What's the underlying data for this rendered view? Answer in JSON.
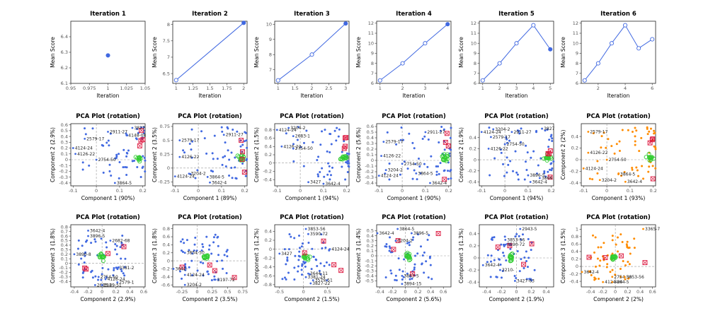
{
  "chart_data": [
    {
      "panel": "iter1",
      "type": "line",
      "title": "Iteration 1",
      "xlabel": "Iteration",
      "ylabel": "Mean Score",
      "xlim": [
        0.95,
        1.05
      ],
      "ylim": [
        6.1,
        6.5
      ],
      "xticks": [
        0.95,
        0.975,
        1.0,
        1.025,
        1.05
      ],
      "yticks": [
        6.1,
        6.2,
        6.3,
        6.4
      ],
      "x": [
        1
      ],
      "values": [
        6.28
      ]
    },
    {
      "panel": "iter2",
      "type": "line",
      "title": "Iteration 2",
      "xlabel": "Iteration",
      "ylabel": "Mean Score",
      "xlim": [
        0.95,
        2.05
      ],
      "ylim": [
        6.2,
        8.1
      ],
      "xticks": [
        1.0,
        1.25,
        1.5,
        1.75,
        2.0
      ],
      "yticks": [
        6.5,
        7.0,
        7.5,
        8.0
      ],
      "x": [
        1,
        2
      ],
      "values": [
        6.3,
        8.05
      ]
    },
    {
      "panel": "iter3",
      "type": "line",
      "title": "Iteration 3",
      "xlabel": "Iteration",
      "ylabel": "Mean Score",
      "xlim": [
        0.9,
        3.1
      ],
      "ylim": [
        6.1,
        10.2
      ],
      "xticks": [
        1.0,
        1.5,
        2.0,
        2.5,
        3.0
      ],
      "yticks": [
        7,
        8,
        9,
        10
      ],
      "x": [
        1,
        2,
        3
      ],
      "values": [
        6.3,
        8.0,
        10.05
      ]
    },
    {
      "panel": "iter4",
      "type": "line",
      "title": "Iteration 4",
      "xlabel": "Iteration",
      "ylabel": "Mean Score",
      "xlim": [
        0.85,
        4.15
      ],
      "ylim": [
        6.0,
        12.2
      ],
      "xticks": [
        1,
        2,
        3,
        4
      ],
      "yticks": [
        6,
        7,
        8,
        9,
        10,
        11,
        12
      ],
      "x": [
        1,
        2,
        3,
        4
      ],
      "values": [
        6.3,
        8.0,
        10.0,
        11.9
      ]
    },
    {
      "panel": "iter5",
      "type": "line",
      "title": "Iteration 5",
      "xlabel": "Iteration",
      "ylabel": "Mean Score",
      "xlim": [
        0.8,
        5.2
      ],
      "ylim": [
        6.0,
        12.2
      ],
      "xticks": [
        1,
        2,
        3,
        4,
        5
      ],
      "yticks": [
        6,
        7,
        8,
        9,
        10,
        11,
        12
      ],
      "x": [
        1,
        2,
        3,
        4,
        5
      ],
      "values": [
        6.3,
        8.0,
        10.0,
        11.8,
        9.4
      ]
    },
    {
      "panel": "iter6",
      "type": "line",
      "title": "Iteration 6",
      "xlabel": "Iteration",
      "ylabel": "Mean Score",
      "xlim": [
        0.75,
        6.25
      ],
      "ylim": [
        6.0,
        12.2
      ],
      "xticks": [
        2,
        4,
        6
      ],
      "yticks": [
        6,
        7,
        8,
        9,
        10,
        11,
        12
      ],
      "x": [
        1,
        2,
        3,
        4,
        5,
        6
      ],
      "values": [
        6.3,
        8.0,
        10.0,
        11.8,
        9.5,
        10.4
      ]
    },
    {
      "panel": "pca1-1",
      "type": "scatter",
      "title": "PCA Plot (rotation)",
      "xlabel": "Component 1 (90%)",
      "ylabel": "Component 2 (2.9%)",
      "xlim": [
        -0.11,
        0.21
      ],
      "ylim": [
        -0.45,
        0.62
      ],
      "xticks": [
        -0.1,
        0,
        0.1,
        0.2
      ],
      "yticks": [
        -0.4,
        -0.3,
        -0.2,
        -0.1,
        0,
        0.1,
        0.2,
        0.3,
        0.4,
        0.5,
        0.6
      ],
      "labels": [
        {
          "text": "3827",
          "x": 0.155,
          "y": 0.6
        },
        {
          "text": "2911-27",
          "x": 0.05,
          "y": 0.48
        },
        {
          "text": "2579-17",
          "x": -0.05,
          "y": 0.36
        },
        {
          "text": "4148-08",
          "x": 0.13,
          "y": 0.42
        },
        {
          "text": "4124-24",
          "x": -0.1,
          "y": 0.2
        },
        {
          "text": "4126-22",
          "x": -0.09,
          "y": 0.1
        },
        {
          "text": "2754-50",
          "x": 0.0,
          "y": 0.0
        },
        {
          "text": "3864-5",
          "x": 0.08,
          "y": -0.4
        }
      ]
    },
    {
      "panel": "pca1-2",
      "type": "scatter",
      "title": "PCA Plot (rotation)",
      "xlabel": "Component 1 (89%)",
      "ylabel": "Component 2 (3.5%)",
      "xlim": [
        -0.11,
        0.21
      ],
      "ylim": [
        -0.32,
        0.8
      ],
      "xticks": [
        -0.1,
        0,
        0.1,
        0.2
      ],
      "yticks": [
        -0.25,
        0,
        0.25,
        0.5,
        0.75
      ],
      "labels": [
        {
          "text": "2579-17",
          "x": -0.08,
          "y": 0.5
        },
        {
          "text": "2911-27",
          "x": 0.11,
          "y": 0.6
        },
        {
          "text": "4126-22",
          "x": -0.08,
          "y": 0.2
        },
        {
          "text": "3204-2",
          "x": -0.04,
          "y": -0.1
        },
        {
          "text": "4124-24",
          "x": -0.1,
          "y": -0.15
        },
        {
          "text": "3864-5",
          "x": 0.04,
          "y": -0.16
        },
        {
          "text": "3642-4",
          "x": 0.05,
          "y": -0.26
        }
      ]
    },
    {
      "panel": "pca1-3",
      "type": "scatter",
      "title": "PCA Plot (rotation)",
      "xlabel": "Component 1 (94%)",
      "ylabel": "Component 2 (1.5%)",
      "xlim": [
        -0.11,
        0.21
      ],
      "ylim": [
        -0.55,
        0.95
      ],
      "xticks": [
        -0.1,
        0,
        0.1,
        0.2
      ],
      "yticks": [
        -0.4,
        -0.2,
        0,
        0.2,
        0.4,
        0.6,
        0.8
      ],
      "labels": [
        {
          "text": "4124-24",
          "x": -0.1,
          "y": 0.8
        },
        {
          "text": "3204-2",
          "x": -0.05,
          "y": 0.85
        },
        {
          "text": "2683-1",
          "x": -0.03,
          "y": 0.65
        },
        {
          "text": "4126-22",
          "x": -0.08,
          "y": 0.4
        },
        {
          "text": "2754-50",
          "x": -0.03,
          "y": 0.35
        },
        {
          "text": "3427",
          "x": 0.035,
          "y": -0.46
        },
        {
          "text": "3642-4",
          "x": 0.1,
          "y": -0.5
        }
      ]
    },
    {
      "panel": "pca1-4",
      "type": "scatter",
      "title": "PCA Plot (rotation)",
      "xlabel": "Component 1 (90%)",
      "ylabel": "Component 2 (5.6%)",
      "xlim": [
        -0.11,
        0.21
      ],
      "ylim": [
        -0.45,
        0.65
      ],
      "xticks": [
        -0.1,
        0,
        0.1,
        0.2
      ],
      "yticks": [
        -0.4,
        -0.3,
        -0.2,
        -0.1,
        0,
        0.1,
        0.2,
        0.3,
        0.4,
        0.5,
        0.6
      ],
      "labels": [
        {
          "text": "2579-17",
          "x": -0.08,
          "y": 0.33
        },
        {
          "text": "2911-27",
          "x": 0.1,
          "y": 0.5
        },
        {
          "text": "4126-22",
          "x": -0.09,
          "y": 0.08
        },
        {
          "text": "2754-50",
          "x": 0.0,
          "y": -0.06
        },
        {
          "text": "3204-2",
          "x": -0.07,
          "y": -0.17
        },
        {
          "text": "3864-5",
          "x": 0.06,
          "y": -0.23
        },
        {
          "text": "4124-24",
          "x": -0.1,
          "y": -0.27
        },
        {
          "text": "3642-4",
          "x": 0.12,
          "y": -0.4
        }
      ]
    },
    {
      "panel": "pca1-5",
      "type": "scatter",
      "title": "PCA Plot (rotation)",
      "xlabel": "Component 1 (94%)",
      "ylabel": "Component 2 (1.9%)",
      "xlim": [
        -0.11,
        0.21
      ],
      "ylim": [
        -0.47,
        0.65
      ],
      "xticks": [
        -0.1,
        0,
        0.1,
        0.2
      ],
      "yticks": [
        -0.4,
        -0.2,
        0,
        0.2,
        0.4
      ],
      "labels": [
        {
          "text": "3204-2",
          "x": -0.05,
          "y": 0.55
        },
        {
          "text": "4124-24",
          "x": -0.1,
          "y": 0.5
        },
        {
          "text": "2579-17",
          "x": -0.06,
          "y": 0.41
        },
        {
          "text": "2911-27",
          "x": 0.03,
          "y": 0.5
        },
        {
          "text": "2754-50",
          "x": 0.0,
          "y": 0.28
        },
        {
          "text": "4126-22",
          "x": -0.07,
          "y": 0.2
        },
        {
          "text": "3896-5",
          "x": 0.1,
          "y": -0.28
        },
        {
          "text": "3864",
          "x": 0.15,
          "y": -0.33
        },
        {
          "text": "3642-4",
          "x": 0.11,
          "y": -0.4
        },
        {
          "text": "3827",
          "x": 0.16,
          "y": 0.56
        }
      ]
    },
    {
      "panel": "pca1-6",
      "type": "scatter",
      "title": "PCA Plot (rotation)",
      "xlabel": "Component 1 (93%)",
      "ylabel": "Component 2 (2%)",
      "xlim": [
        -0.11,
        0.21
      ],
      "ylim": [
        -0.45,
        0.62
      ],
      "xticks": [
        -0.1,
        0,
        0.1,
        0.2
      ],
      "yticks": [
        -0.4,
        -0.2,
        0,
        0.2,
        0.4
      ],
      "labels": [
        {
          "text": "2579-17",
          "x": -0.08,
          "y": 0.48
        },
        {
          "text": "4126-22",
          "x": -0.08,
          "y": 0.12
        },
        {
          "text": "2754-50",
          "x": 0.0,
          "y": 0.0
        },
        {
          "text": "4124-24",
          "x": -0.1,
          "y": -0.15
        },
        {
          "text": "3864-5",
          "x": 0.05,
          "y": -0.25
        },
        {
          "text": "3204-2",
          "x": -0.03,
          "y": -0.35
        },
        {
          "text": "3642-4",
          "x": 0.08,
          "y": -0.38
        }
      ]
    },
    {
      "panel": "pca2-1",
      "type": "scatter",
      "title": "PCA Plot (rotation)",
      "xlabel": "Component 2 (2.9%)",
      "ylabel": "Component 3 (1.8%)",
      "xlim": [
        -0.45,
        0.62
      ],
      "ylim": [
        -0.52,
        0.85
      ],
      "xticks": [
        -0.4,
        -0.2,
        0,
        0.2,
        0.4,
        0.6
      ],
      "yticks": [
        -0.4,
        -0.3,
        -0.2,
        -0.1,
        0,
        0.1,
        0.2,
        0.3,
        0.4,
        0.5,
        0.6,
        0.7,
        0.8
      ],
      "labels": [
        {
          "text": "3642-4",
          "x": -0.2,
          "y": 0.72
        },
        {
          "text": "3896-5",
          "x": -0.2,
          "y": 0.6
        },
        {
          "text": "2682-68",
          "x": 0.12,
          "y": 0.5
        },
        {
          "text": "3890-8",
          "x": -0.4,
          "y": 0.2
        },
        {
          "text": "3381-2",
          "x": 0.22,
          "y": -0.1
        },
        {
          "text": "2754-50",
          "x": -0.05,
          "y": -0.3
        },
        {
          "text": "4126-24",
          "x": 0.05,
          "y": -0.35
        },
        {
          "text": "2579-1",
          "x": 0.22,
          "y": -0.42
        },
        {
          "text": "2683-8",
          "x": -0.1,
          "y": -0.48
        },
        {
          "text": "3129-51",
          "x": 0.0,
          "y": -0.48
        }
      ]
    },
    {
      "panel": "pca2-2",
      "type": "scatter",
      "title": "PCA Plot (rotation)",
      "xlabel": "Component 2 (3.5%)",
      "ylabel": "Component 3 (1.8%)",
      "xlim": [
        -0.4,
        0.82
      ],
      "ylim": [
        -0.65,
        0.9
      ],
      "xticks": [
        -0.25,
        0,
        0.25,
        0.5,
        0.75
      ],
      "yticks": [
        -0.6,
        -0.4,
        -0.2,
        0,
        0.2,
        0.4,
        0.6,
        0.8
      ],
      "labels": [
        {
          "text": "3204-2",
          "x": -0.2,
          "y": -0.6
        },
        {
          "text": "4124-24",
          "x": -0.2,
          "y": -0.35
        },
        {
          "text": "3642-",
          "x": -0.4,
          "y": -0.2
        },
        {
          "text": "3854-50",
          "x": -0.2,
          "y": 0.2
        },
        {
          "text": "3197-72",
          "x": 0.3,
          "y": -0.47
        }
      ]
    },
    {
      "panel": "pca2-3",
      "type": "scatter",
      "title": "PCA Plot (rotation)",
      "xlabel": "Component 2 (1.5%)",
      "ylabel": "Component 3 (1.2%)",
      "xlim": [
        -0.6,
        0.95
      ],
      "ylim": [
        -0.85,
        0.55
      ],
      "xticks": [
        -0.5,
        0,
        0.5
      ],
      "yticks": [
        -0.8,
        -0.6,
        -0.4,
        -0.2,
        0,
        0.2,
        0.4
      ],
      "labels": [
        {
          "text": "3853-56",
          "x": 0.05,
          "y": 0.46
        },
        {
          "text": "3590-72",
          "x": 0.1,
          "y": 0.34
        },
        {
          "text": "3427",
          "x": -0.5,
          "y": -0.1
        },
        {
          "text": "3644-11",
          "x": 0.1,
          "y": -0.55
        },
        {
          "text": "3381-24",
          "x": 0.05,
          "y": -0.63
        },
        {
          "text": "3579-51",
          "x": 0.2,
          "y": -0.7
        },
        {
          "text": "3827-22",
          "x": 0.15,
          "y": -0.77
        },
        {
          "text": "4124-24",
          "x": 0.55,
          "y": 0.0
        }
      ]
    },
    {
      "panel": "pca2-4",
      "type": "scatter",
      "title": "PCA Plot (rotation)",
      "xlabel": "Component 2 (5.6%)",
      "ylabel": "Component 3 (1.4%)",
      "xlim": [
        -0.45,
        0.72
      ],
      "ylim": [
        -0.62,
        0.62
      ],
      "xticks": [
        -0.4,
        -0.2,
        0,
        0.2,
        0.4,
        0.6
      ],
      "yticks": [
        -0.5,
        -0.4,
        -0.3,
        -0.2,
        -0.1,
        0,
        0.1,
        0.2,
        0.3,
        0.4,
        0.5
      ],
      "labels": [
        {
          "text": "3642-4",
          "x": -0.45,
          "y": 0.45
        },
        {
          "text": "3896-5",
          "x": 0.1,
          "y": 0.45
        },
        {
          "text": "3864-5",
          "x": -0.12,
          "y": 0.55
        },
        {
          "text": "3204-2",
          "x": -0.15,
          "y": 0.3
        },
        {
          "text": "3894-15",
          "x": -0.05,
          "y": -0.56
        },
        {
          "text": "3853-5",
          "x": -0.05,
          "y": -0.4
        }
      ]
    },
    {
      "panel": "pca2-5",
      "type": "scatter",
      "title": "PCA Plot (rotation)",
      "xlabel": "Component 2 (1.9%)",
      "ylabel": "Component 3 (1.3%)",
      "xlim": [
        -0.5,
        0.5
      ],
      "ylim": [
        -0.48,
        0.55
      ],
      "xticks": [
        -0.4,
        -0.2,
        0,
        0.2,
        0.4
      ],
      "yticks": [
        -0.4,
        -0.2,
        0,
        0.2,
        0.4
      ],
      "labels": [
        {
          "text": "2943-5",
          "x": 0.05,
          "y": 0.5
        },
        {
          "text": "3853-56",
          "x": -0.15,
          "y": 0.3
        },
        {
          "text": "3590-72",
          "x": -0.15,
          "y": 0.22
        },
        {
          "text": "3642-4",
          "x": -0.45,
          "y": -0.12
        },
        {
          "text": "3210-",
          "x": -0.22,
          "y": -0.2
        },
        {
          "text": "3427-63",
          "x": -0.02,
          "y": -0.38
        }
      ]
    },
    {
      "panel": "pca2-6",
      "type": "scatter",
      "title": "PCA Plot (rotation)",
      "xlabel": "Component 2 (2%)",
      "ylabel": "Component 3 (1.5%)",
      "xlim": [
        -0.55,
        0.65
      ],
      "ylim": [
        -0.55,
        1.12
      ],
      "xticks": [
        -0.4,
        -0.2,
        0,
        0.2,
        0.4,
        0.6
      ],
      "yticks": [
        -0.4,
        -0.2,
        0,
        0.2,
        0.4,
        0.6,
        0.8,
        1.0
      ],
      "labels": [
        {
          "text": "3365-7",
          "x": 0.45,
          "y": 1.05
        },
        {
          "text": "3642-4",
          "x": -0.55,
          "y": -0.15
        },
        {
          "text": "2754-50",
          "x": -0.05,
          "y": -0.28
        },
        {
          "text": "3853-56",
          "x": 0.15,
          "y": -0.28
        },
        {
          "text": "4124-24",
          "x": -0.2,
          "y": -0.42
        },
        {
          "text": "3864-5",
          "x": -0.05,
          "y": -0.42
        }
      ]
    }
  ],
  "colors": {
    "line": "#4169e1",
    "point": "#4169e1",
    "highlight": "#32cd32",
    "flag": "#dc143c",
    "orange": "#ff8c00"
  }
}
